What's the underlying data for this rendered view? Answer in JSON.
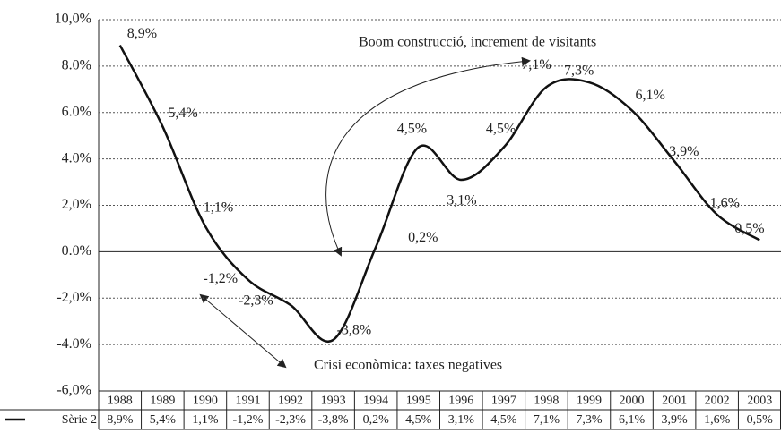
{
  "chart_data": {
    "type": "line",
    "categories": [
      "1988",
      "1989",
      "1990",
      "1991",
      "1992",
      "1993",
      "1994",
      "1995",
      "1996",
      "1997",
      "1998",
      "1999",
      "2000",
      "2001",
      "2002",
      "2003"
    ],
    "series": [
      {
        "name": "Sèrie 2",
        "color": "#111111",
        "values": [
          8.9,
          5.4,
          1.1,
          -1.2,
          -2.3,
          -3.8,
          0.2,
          4.5,
          3.1,
          4.5,
          7.1,
          7.3,
          6.1,
          3.9,
          1.6,
          0.5
        ],
        "value_labels": [
          "8,9%",
          "5,4%",
          "1,1%",
          "-1,2%",
          "-2,3%",
          "-3,8%",
          "0,2%",
          "4,5%",
          "3,1%",
          "4,5%",
          "7,1%",
          "7,3%",
          "6,1%",
          "3,9%",
          "1,6%",
          "0,5%"
        ]
      }
    ],
    "ylim": [
      -6,
      10
    ],
    "yticks": [
      {
        "value": -6,
        "label": "-6,0%"
      },
      {
        "value": -4,
        "label": "-4.0%"
      },
      {
        "value": -2,
        "label": "-2,0%"
      },
      {
        "value": 0,
        "label": "0.0%"
      },
      {
        "value": 2,
        "label": "2,0%"
      },
      {
        "value": 4,
        "label": "4.0%"
      },
      {
        "value": 6,
        "label": "6.0%"
      },
      {
        "value": 8,
        "label": "8.0%"
      },
      {
        "value": 10,
        "label": "10,0%"
      }
    ],
    "grid": true,
    "annotations": [
      "Boom construcció, increment de visitants",
      "Crisi econòmica: taxes negatives"
    ]
  }
}
